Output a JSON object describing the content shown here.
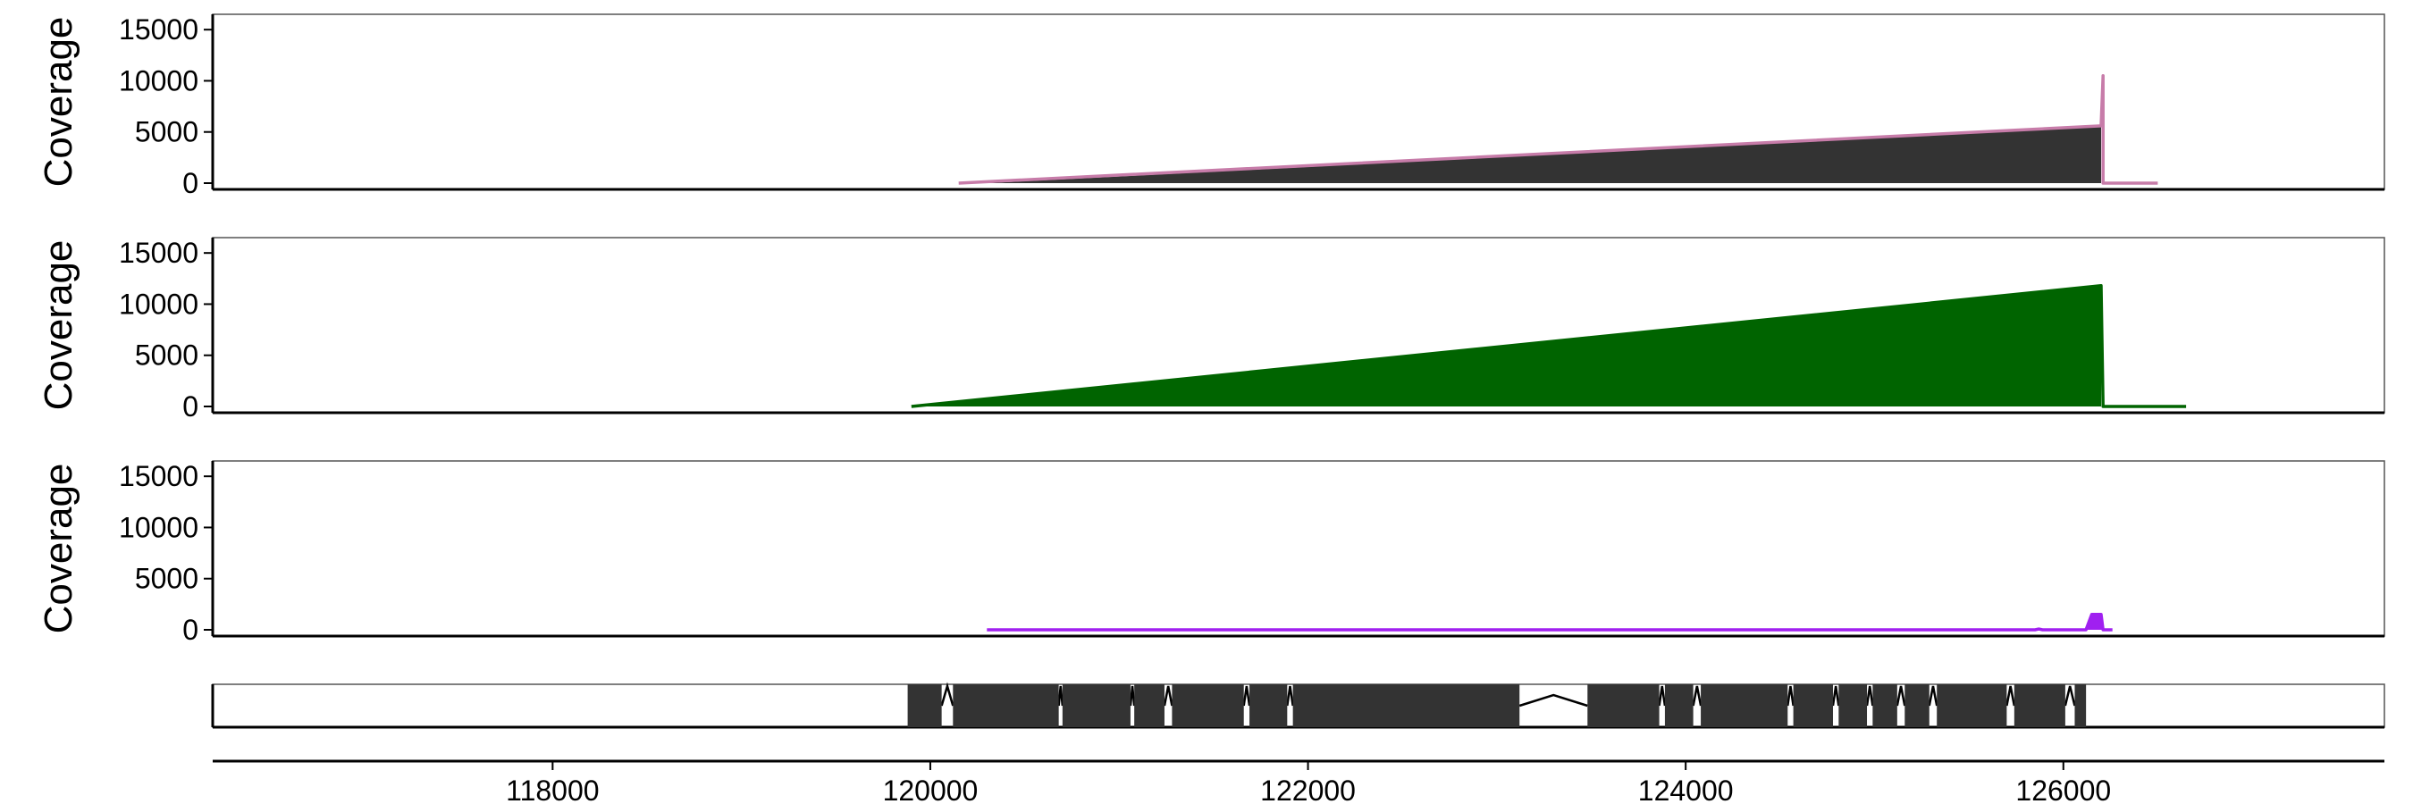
{
  "chart_data": {
    "type": "area",
    "x_axis": {
      "lim": [
        116200,
        127700
      ],
      "ticks": [
        118000,
        120000,
        122000,
        124000,
        126000
      ],
      "tick_labels": [
        "118000",
        "120000",
        "122000",
        "124000",
        "126000"
      ]
    },
    "tracks": [
      {
        "ylabel": "Coverage",
        "ylim": [
          0,
          16500
        ],
        "yticks": [
          0,
          5000,
          10000,
          15000
        ],
        "ytick_labels": [
          "0",
          "5000",
          "10000",
          "15000"
        ],
        "fill_color": "#333333",
        "line_color": "#c77ca9",
        "fill": [
          [
            120300,
            0
          ],
          [
            126200,
            5500
          ],
          [
            126200,
            0
          ]
        ],
        "line": [
          [
            120150,
            0
          ],
          [
            126200,
            5600
          ],
          [
            126210,
            10500
          ],
          [
            126210,
            0
          ],
          [
            126500,
            0
          ]
        ]
      },
      {
        "ylabel": "Coverage",
        "ylim": [
          0,
          16500
        ],
        "yticks": [
          0,
          5000,
          10000,
          15000
        ],
        "ytick_labels": [
          "0",
          "5000",
          "10000",
          "15000"
        ],
        "fill_color": "#006400",
        "line_color": "#006400",
        "fill": [
          [
            119900,
            0
          ],
          [
            126200,
            11800
          ],
          [
            126200,
            0
          ]
        ],
        "line": [
          [
            119900,
            0
          ],
          [
            126200,
            11800
          ],
          [
            126210,
            0
          ],
          [
            126650,
            0
          ]
        ]
      },
      {
        "ylabel": "Coverage",
        "ylim": [
          0,
          16500
        ],
        "yticks": [
          0,
          5000,
          10000,
          15000
        ],
        "ytick_labels": [
          "0",
          "5000",
          "10000",
          "15000"
        ],
        "fill_color": "#a020f0",
        "line_color": "#a020f0",
        "fill": [
          [
            126120,
            0
          ],
          [
            126150,
            1500
          ],
          [
            126200,
            1500
          ],
          [
            126210,
            0
          ]
        ],
        "line": [
          [
            120300,
            0
          ],
          [
            125850,
            0
          ],
          [
            125870,
            80
          ],
          [
            125890,
            0
          ],
          [
            126120,
            0
          ],
          [
            126150,
            1500
          ],
          [
            126200,
            1500
          ],
          [
            126210,
            0
          ],
          [
            126260,
            0
          ]
        ]
      }
    ],
    "gene_model": {
      "exon_color": "#333333",
      "exons": [
        [
          119880,
          120060
        ],
        [
          120120,
          120680
        ],
        [
          120700,
          121060
        ],
        [
          121080,
          121240
        ],
        [
          121280,
          121660
        ],
        [
          121690,
          121890
        ],
        [
          121920,
          123120
        ],
        [
          123480,
          123860
        ],
        [
          123890,
          124040
        ],
        [
          124080,
          124540
        ],
        [
          124570,
          124780
        ],
        [
          124810,
          124960
        ],
        [
          124990,
          125120
        ],
        [
          125160,
          125290
        ],
        [
          125330,
          125700
        ],
        [
          125740,
          126010
        ],
        [
          126060,
          126120
        ]
      ],
      "introns": [
        [
          120060,
          120120
        ],
        [
          120680,
          120700
        ],
        [
          121060,
          121080
        ],
        [
          121240,
          121280
        ],
        [
          121660,
          121690
        ],
        [
          121890,
          121920
        ],
        [
          123120,
          123480
        ],
        [
          123860,
          123890
        ],
        [
          124040,
          124080
        ],
        [
          124540,
          124570
        ],
        [
          124780,
          124810
        ],
        [
          124960,
          124990
        ],
        [
          125120,
          125160
        ],
        [
          125290,
          125330
        ],
        [
          125700,
          125740
        ],
        [
          126010,
          126060
        ]
      ]
    }
  }
}
